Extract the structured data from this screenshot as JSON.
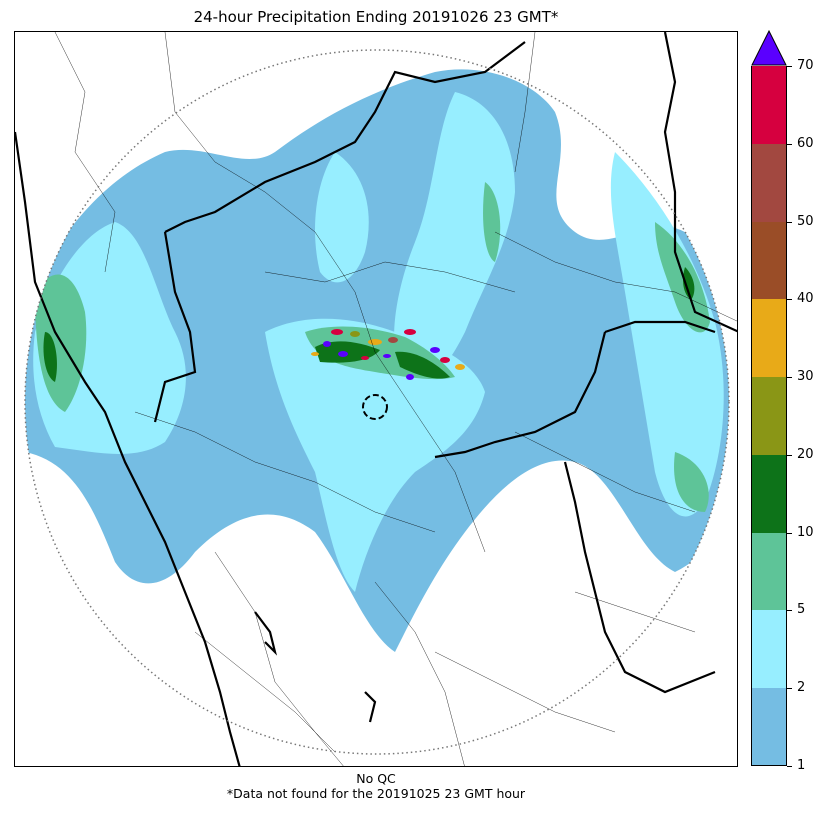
{
  "title": "24-hour Precipitation Ending 20191026 23 GMT*",
  "footer": {
    "qc": "No QC",
    "note": "*Data not found for the 20191025 23 GMT hour"
  },
  "colorbar": {
    "levels": [
      "1",
      "2",
      "5",
      "10",
      "20",
      "30",
      "40",
      "50",
      "60",
      "70"
    ],
    "colors": [
      "#75bde3",
      "#97eeff",
      "#5ec498",
      "#0d7319",
      "#8a9616",
      "#e8aa18",
      "#9a4d27",
      "#a24840",
      "#d6003f"
    ],
    "extend_color": "#5a00ff"
  },
  "map": {
    "radar_range_ring": "dotted",
    "center_marker": "dashed-circle"
  }
}
